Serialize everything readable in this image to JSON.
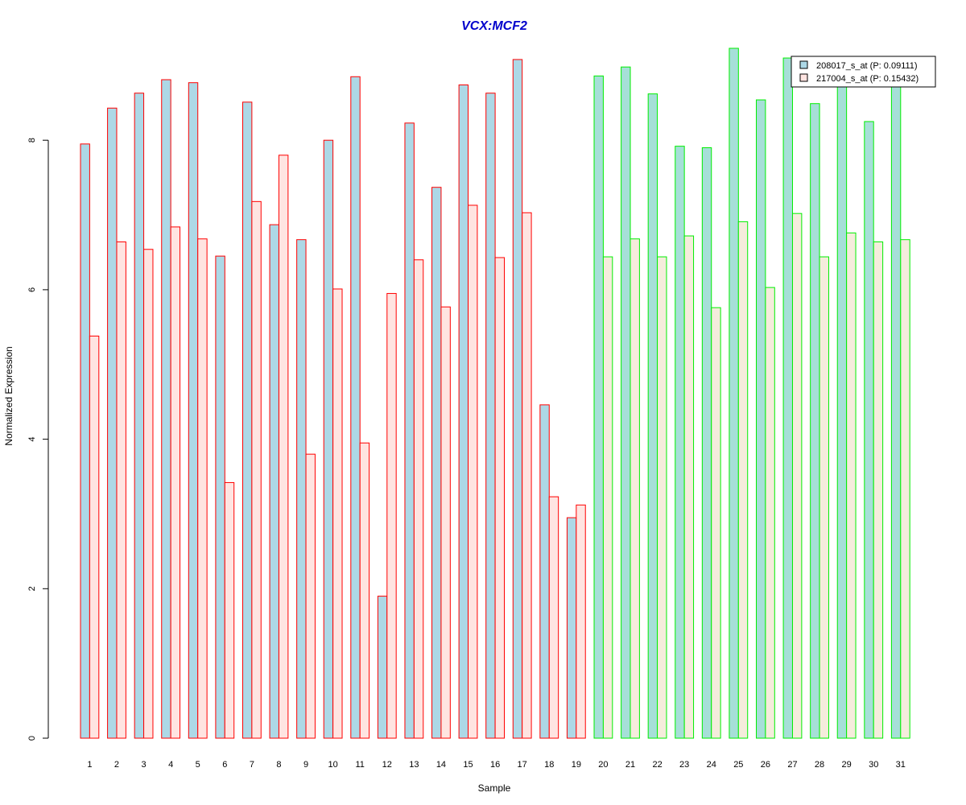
{
  "chart_data": {
    "type": "bar",
    "title": "VCX:MCF2",
    "xlabel": "Sample",
    "ylabel": "Normalized Expression",
    "ylim": [
      0,
      9.3
    ],
    "yticks": [
      0,
      2,
      4,
      6,
      8
    ],
    "categories": [
      "1",
      "2",
      "3",
      "4",
      "5",
      "6",
      "7",
      "8",
      "9",
      "10",
      "11",
      "12",
      "13",
      "14",
      "15",
      "16",
      "17",
      "18",
      "19",
      "20",
      "21",
      "22",
      "23",
      "24",
      "25",
      "26",
      "27",
      "28",
      "29",
      "30",
      "31"
    ],
    "group_a_count": 19,
    "series": [
      {
        "name": "208017_s_at (P: 0.09111)",
        "values": [
          7.95,
          8.43,
          8.63,
          8.81,
          8.77,
          6.45,
          8.51,
          6.87,
          6.67,
          8.0,
          8.85,
          1.9,
          8.23,
          7.37,
          8.74,
          8.63,
          9.08,
          4.46,
          2.95,
          8.86,
          8.98,
          8.62,
          7.92,
          7.9,
          9.23,
          8.54,
          9.1,
          8.49,
          8.73,
          8.25,
          8.75
        ]
      },
      {
        "name": "217004_s_at (P: 0.15432)",
        "values": [
          5.38,
          6.64,
          6.54,
          6.84,
          6.68,
          3.42,
          7.18,
          7.8,
          3.8,
          6.01,
          3.95,
          5.95,
          6.4,
          5.77,
          7.13,
          6.43,
          7.03,
          3.23,
          3.12,
          6.44,
          6.68,
          6.44,
          6.72,
          5.76,
          6.91,
          6.03,
          7.02,
          6.44,
          6.76,
          6.64,
          6.67
        ]
      }
    ],
    "legend": "top-right",
    "colors": {
      "title": "#0000cc",
      "series1_fill": "#add8e6",
      "series1_fill_group_b": "#a6dfd8",
      "series2_fill": "#ffe4e1",
      "series2_fill_group_b": "#f5ecdc",
      "group_a_border": "#ff0000",
      "group_b_border": "#00ee00",
      "legend_swatch1": "#add8e6",
      "legend_swatch2": "#ffe4e1"
    }
  }
}
